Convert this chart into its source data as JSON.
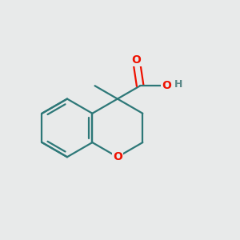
{
  "background_color": "#e8eaea",
  "bond_color": "#2d7878",
  "oxygen_color": "#ee1100",
  "h_color": "#5a8888",
  "bond_width": 1.6,
  "font_size": 10,
  "figsize": [
    3.0,
    3.0
  ],
  "dpi": 100,
  "xlim": [
    0.05,
    0.95
  ],
  "ylim": [
    0.08,
    0.92
  ]
}
